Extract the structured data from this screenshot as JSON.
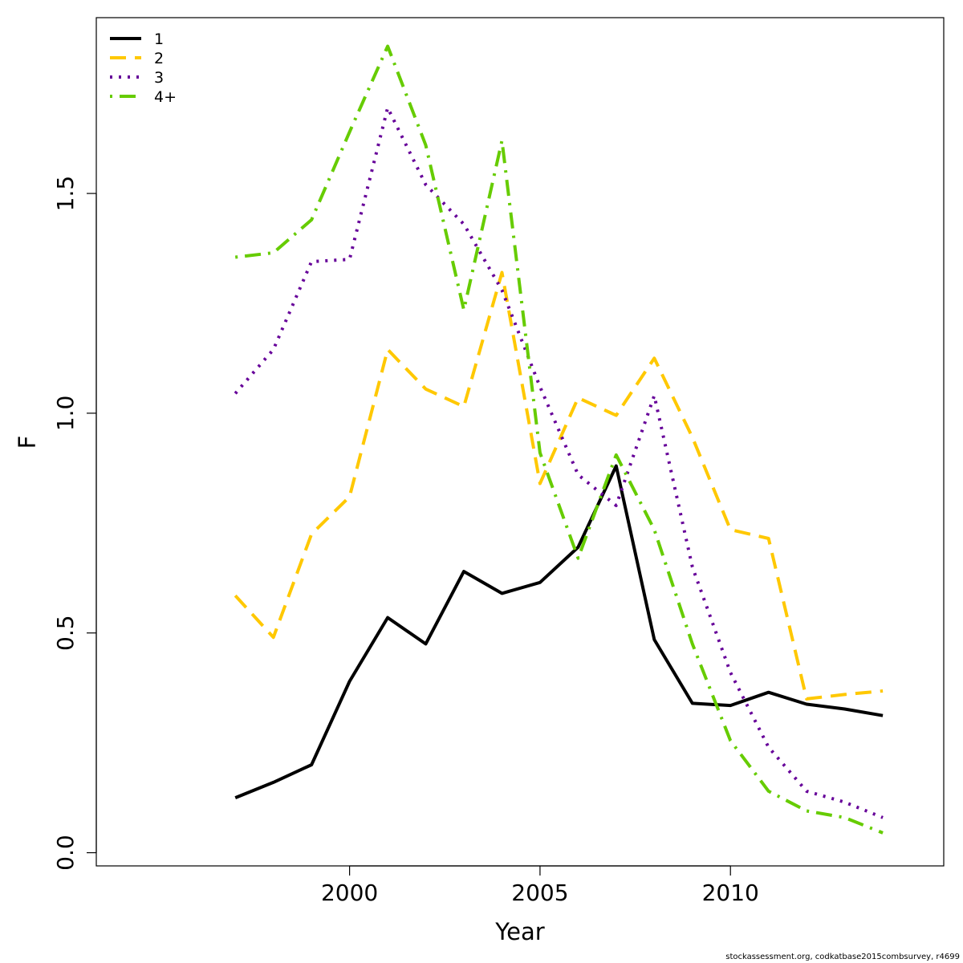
{
  "chart_data": {
    "type": "line",
    "title": "",
    "xlabel": "Year",
    "ylabel": "F",
    "x": [
      1997,
      1998,
      1999,
      2000,
      2001,
      2002,
      2003,
      2004,
      2005,
      2006,
      2007,
      2008,
      2009,
      2010,
      2011,
      2012,
      2013,
      2014
    ],
    "xlim": [
      1993.35,
      2015.6
    ],
    "ylim": [
      -0.03,
      1.9
    ],
    "xticks": [
      2000,
      2005,
      2010
    ],
    "yticks": [
      0.0,
      0.5,
      1.0,
      1.5
    ],
    "xtick_labels": [
      "2000",
      "2005",
      "2010"
    ],
    "ytick_labels": [
      "0.0",
      "0.5",
      "1.0",
      "1.5"
    ],
    "legend_position": "top-left",
    "grid": false,
    "series": [
      {
        "name": "1",
        "color": "#000000",
        "dash": "solid",
        "values": [
          0.125,
          0.16,
          0.2,
          0.39,
          0.535,
          0.475,
          0.64,
          0.59,
          0.615,
          0.695,
          0.88,
          0.485,
          0.34,
          0.335,
          0.365,
          0.338,
          0.327,
          0.312
        ]
      },
      {
        "name": "2",
        "color": "#FFC800",
        "dash": "dashed",
        "values": [
          0.585,
          0.49,
          0.725,
          0.81,
          1.145,
          1.055,
          1.015,
          1.32,
          0.84,
          1.035,
          0.995,
          1.125,
          0.945,
          0.735,
          0.715,
          0.35,
          0.36,
          0.368
        ]
      },
      {
        "name": "3",
        "color": "#660099",
        "dash": "dotted",
        "values": [
          1.045,
          1.145,
          1.345,
          1.35,
          1.695,
          1.52,
          1.43,
          1.28,
          1.06,
          0.86,
          0.79,
          1.04,
          0.65,
          0.41,
          0.24,
          0.14,
          0.115,
          0.08
        ]
      },
      {
        "name": "4+",
        "color": "#66CC00",
        "dash": "dotdash",
        "values": [
          1.355,
          1.365,
          1.44,
          1.64,
          1.835,
          1.61,
          1.235,
          1.62,
          0.91,
          0.67,
          0.905,
          0.735,
          0.475,
          0.255,
          0.14,
          0.095,
          0.08,
          0.045
        ]
      }
    ]
  },
  "footer": "stockassessment.org, codkatbase2015combsurvey, r4699"
}
